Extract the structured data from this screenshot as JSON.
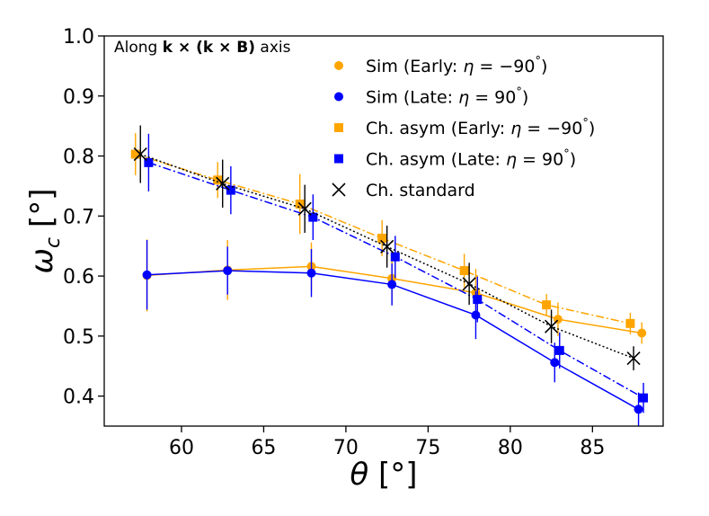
{
  "chart_data": {
    "type": "scatter",
    "annotation": {
      "prefix": "Along ",
      "bold": "k × (k × B)",
      "suffix": " axis"
    },
    "xlabel": {
      "symbol": "θ",
      "unit": " [°]"
    },
    "ylabel": {
      "symbol": "ω",
      "sub": "c",
      "unit": " [°]"
    },
    "xlim": [
      55.3,
      89.3
    ],
    "ylim": [
      0.35,
      1.0
    ],
    "xticks": [
      60,
      65,
      70,
      75,
      80,
      85
    ],
    "yticks": [
      0.4,
      0.5,
      0.6,
      0.7,
      0.8,
      0.9,
      1.0
    ],
    "ytick_labels": [
      "0.4",
      "0.5",
      "0.6",
      "0.7",
      "0.8",
      "0.9",
      "1.0"
    ],
    "series": [
      {
        "id": "sim-early",
        "legend_parts": [
          "Sim (Early: ",
          "η",
          " = −90",
          "°",
          ")"
        ],
        "color": "#FFA500",
        "marker": "circle",
        "line": "solid",
        "x": [
          57.9,
          62.8,
          67.9,
          72.8,
          77.9,
          82.9,
          88.0
        ],
        "y": [
          0.601,
          0.61,
          0.616,
          0.596,
          0.572,
          0.528,
          0.505
        ],
        "err": [
          0.06,
          0.05,
          0.04,
          0.04,
          0.04,
          0.028,
          0.018
        ]
      },
      {
        "id": "sim-late",
        "legend_parts": [
          "Sim (Late: ",
          "η",
          " = 90",
          "°",
          ")"
        ],
        "color": "#0000FF",
        "marker": "circle",
        "line": "solid",
        "x": [
          57.9,
          62.8,
          67.9,
          72.8,
          77.9,
          82.7,
          87.8
        ],
        "y": [
          0.602,
          0.609,
          0.605,
          0.586,
          0.535,
          0.456,
          0.378
        ],
        "err": [
          0.058,
          0.04,
          0.04,
          0.035,
          0.04,
          0.033,
          0.028
        ]
      },
      {
        "id": "ch-asym-early",
        "legend_parts": [
          "Ch. asym (Early: ",
          "η",
          " = −90",
          "°",
          ")"
        ],
        "color": "#FFA500",
        "marker": "square",
        "line": "dashdot",
        "x": [
          57.2,
          62.2,
          67.2,
          72.2,
          77.2,
          82.2,
          87.3
        ],
        "y": [
          0.803,
          0.76,
          0.72,
          0.663,
          0.609,
          0.552,
          0.521
        ],
        "err": [
          0.035,
          0.03,
          0.05,
          0.03,
          0.028,
          0.018,
          0.018
        ]
      },
      {
        "id": "ch-asym-late",
        "legend_parts": [
          "Ch. asym (Late: ",
          "η",
          " = 90",
          "°",
          ")"
        ],
        "color": "#0000FF",
        "marker": "square",
        "line": "dashdot",
        "x": [
          58.0,
          63.0,
          68.0,
          73.0,
          78.0,
          83.0,
          88.1
        ],
        "y": [
          0.789,
          0.743,
          0.698,
          0.632,
          0.561,
          0.476,
          0.397
        ],
        "err": [
          0.048,
          0.04,
          0.038,
          0.035,
          0.038,
          0.03,
          0.025
        ]
      },
      {
        "id": "ch-standard",
        "legend_parts": [
          "Ch. standard"
        ],
        "color": "#000000",
        "marker": "x",
        "line": "dotted",
        "x": [
          57.5,
          62.5,
          67.5,
          72.5,
          77.5,
          82.5,
          87.5
        ],
        "y": [
          0.803,
          0.754,
          0.712,
          0.649,
          0.587,
          0.516,
          0.463
        ],
        "err": [
          0.048,
          0.04,
          0.04,
          0.035,
          0.035,
          0.028,
          0.02
        ]
      }
    ]
  }
}
